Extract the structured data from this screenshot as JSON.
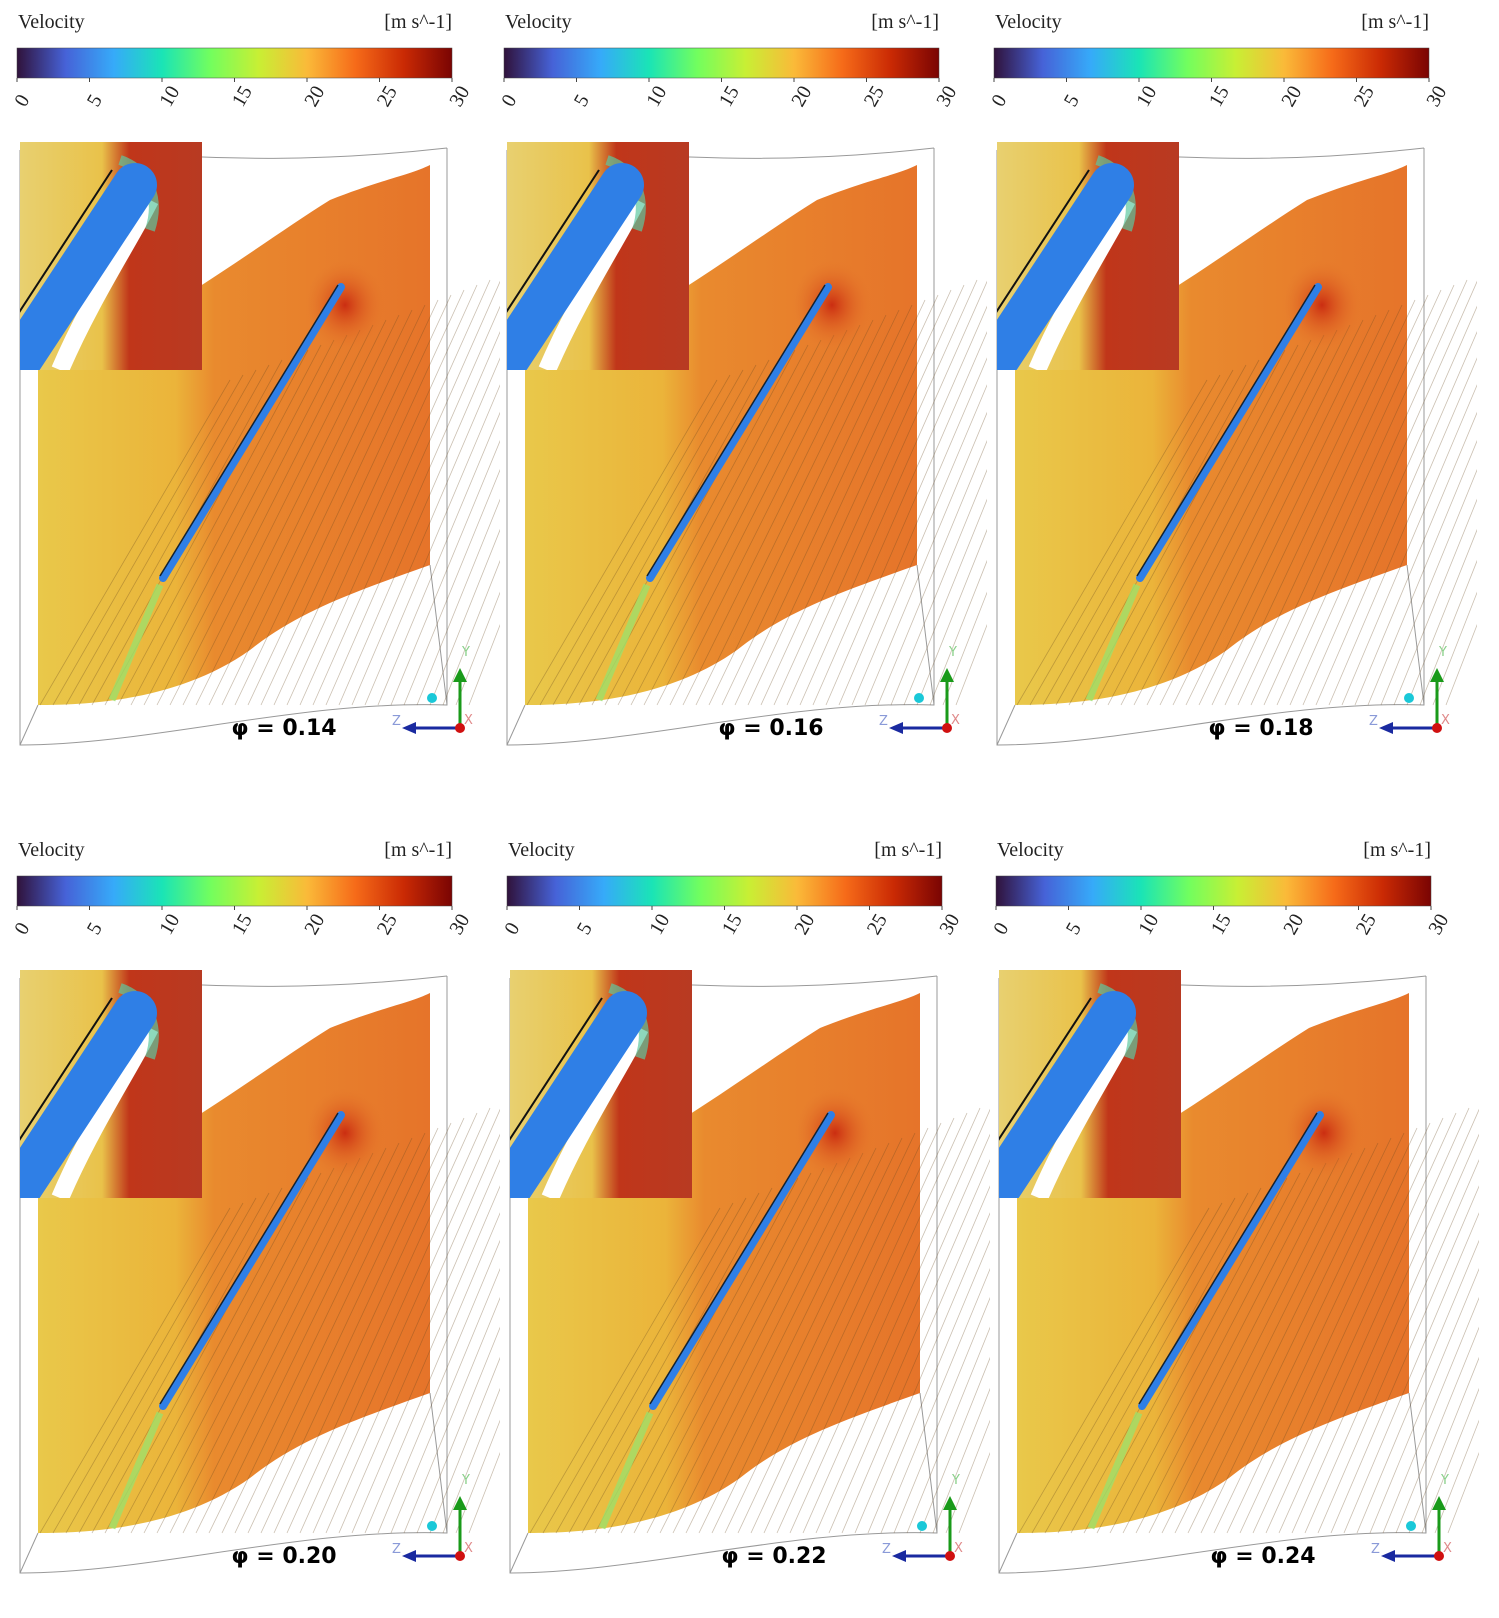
{
  "panels": [
    {
      "colorbar": {
        "title": "Velocity",
        "unit": "[m s^-1]",
        "ticks": [
          0,
          5,
          10,
          15,
          20,
          25,
          30
        ]
      },
      "label": "φ = 0.14",
      "axes": {
        "y": "Y",
        "z": "Z",
        "x": "X"
      }
    },
    {
      "colorbar": {
        "title": "Velocity",
        "unit": "[m s^-1]",
        "ticks": [
          0,
          5,
          10,
          15,
          20,
          25,
          30
        ]
      },
      "label": "φ = 0.16",
      "axes": {
        "y": "Y",
        "z": "Z",
        "x": "X"
      }
    },
    {
      "colorbar": {
        "title": "Velocity",
        "unit": "[m s^-1]",
        "ticks": [
          0,
          5,
          10,
          15,
          20,
          25,
          30
        ]
      },
      "label": "φ = 0.18",
      "axes": {
        "y": "Y",
        "z": "Z",
        "x": "X"
      }
    },
    {
      "colorbar": {
        "title": "Velocity",
        "unit": "[m s^-1]",
        "ticks": [
          0,
          5,
          10,
          15,
          20,
          25,
          30
        ]
      },
      "label": "φ = 0.20",
      "axes": {
        "y": "Y",
        "z": "Z",
        "x": "X"
      }
    },
    {
      "colorbar": {
        "title": "Velocity",
        "unit": "[m s^-1]",
        "ticks": [
          0,
          5,
          10,
          15,
          20,
          25,
          30
        ]
      },
      "label": "φ = 0.22",
      "axes": {
        "y": "Y",
        "z": "Z",
        "x": "X"
      }
    },
    {
      "colorbar": {
        "title": "Velocity",
        "unit": "[m s^-1]",
        "ticks": [
          0,
          5,
          10,
          15,
          20,
          25,
          30
        ]
      },
      "label": "φ = 0.24",
      "axes": {
        "y": "Y",
        "z": "Z",
        "x": "X"
      }
    }
  ]
}
